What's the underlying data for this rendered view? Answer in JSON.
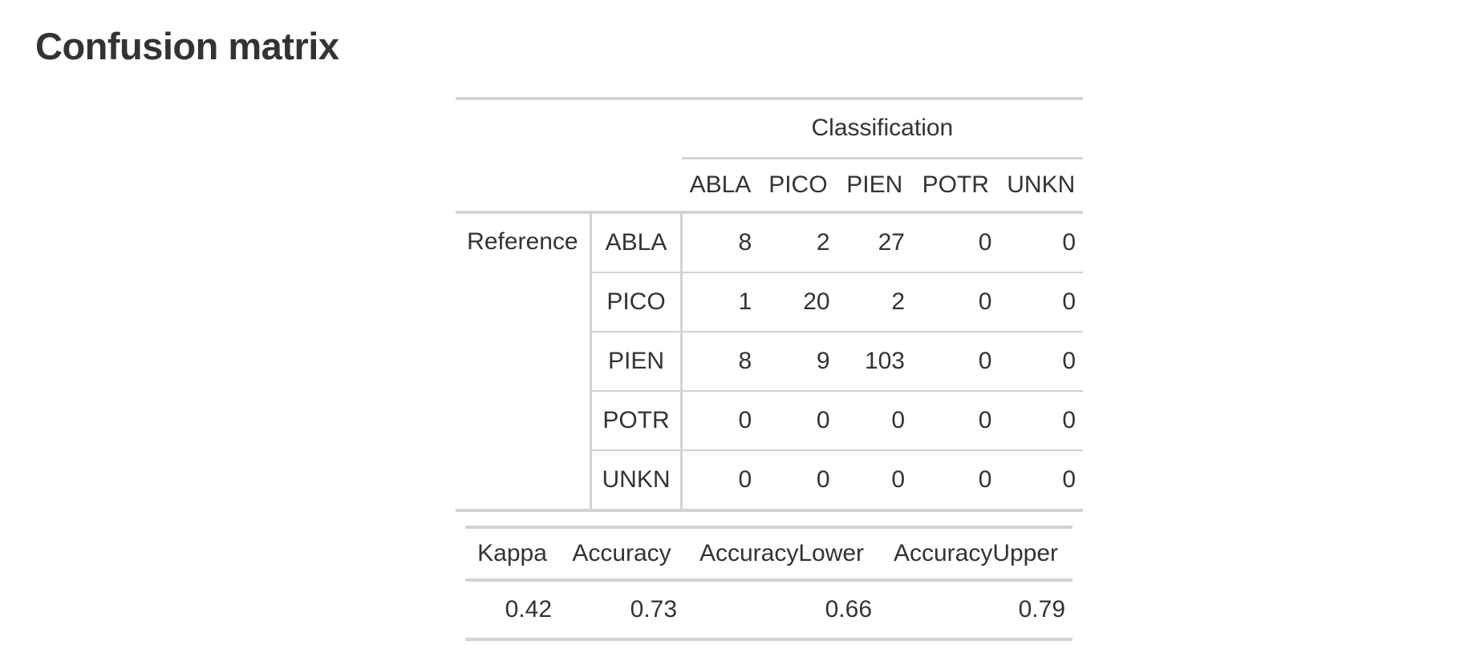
{
  "title": "Confusion matrix",
  "confusion_matrix": {
    "column_group_label": "Classification",
    "row_group_label": "Reference",
    "columns": [
      "ABLA",
      "PICO",
      "PIEN",
      "POTR",
      "UNKN"
    ],
    "rows": [
      {
        "label": "ABLA",
        "values": [
          "8",
          "2",
          "27",
          "0",
          "0"
        ]
      },
      {
        "label": "PICO",
        "values": [
          "1",
          "20",
          "2",
          "0",
          "0"
        ]
      },
      {
        "label": "PIEN",
        "values": [
          "8",
          "9",
          "103",
          "0",
          "0"
        ]
      },
      {
        "label": "POTR",
        "values": [
          "0",
          "0",
          "0",
          "0",
          "0"
        ]
      },
      {
        "label": "UNKN",
        "values": [
          "0",
          "0",
          "0",
          "0",
          "0"
        ]
      }
    ]
  },
  "stats": {
    "headers": [
      "Kappa",
      "Accuracy",
      "AccuracyLower",
      "AccuracyUpper"
    ],
    "values": [
      "0.42",
      "0.73",
      "0.66",
      "0.79"
    ]
  }
}
